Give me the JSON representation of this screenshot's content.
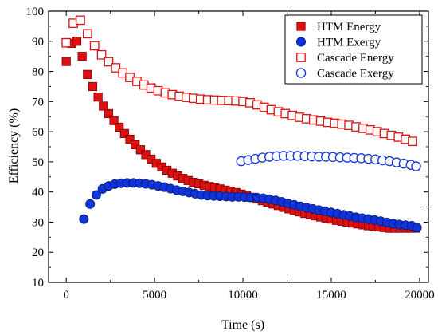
{
  "chart_data": {
    "type": "scatter",
    "title": "",
    "xlabel": "Time (s)",
    "ylabel": "Efficiency (%)",
    "xlim": [
      -1000,
      20500
    ],
    "ylim": [
      10,
      100
    ],
    "xticks": [
      0,
      5000,
      10000,
      15000,
      20000
    ],
    "yticks": [
      10,
      20,
      30,
      40,
      50,
      60,
      70,
      80,
      90,
      100
    ],
    "grid": false,
    "legend_position": "top-right",
    "series": [
      {
        "name": "HTM Energy",
        "marker": "square-filled",
        "color": "#dd1111",
        "x": [
          0,
          300,
          600,
          900,
          1200,
          1500,
          1800,
          2100,
          2400,
          2700,
          3000,
          3300,
          3600,
          3900,
          4200,
          4500,
          4800,
          5100,
          5400,
          5700,
          6000,
          6300,
          6600,
          6900,
          7200,
          7500,
          7800,
          8100,
          8400,
          8700,
          9000,
          9300,
          9600,
          9900,
          10200,
          10500,
          10800,
          11100,
          11400,
          11700,
          12000,
          12300,
          12600,
          12900,
          13200,
          13500,
          13800,
          14100,
          14400,
          14700,
          15000,
          15300,
          15600,
          15900,
          16200,
          16500,
          16800,
          17100,
          17400,
          17700,
          18000,
          18300,
          18600,
          18900,
          19200,
          19500,
          19800
        ],
        "y": [
          83.3,
          89.3,
          90,
          85,
          79,
          75,
          71.5,
          68.5,
          66,
          63.7,
          61.5,
          59.4,
          57.5,
          55.7,
          54,
          52.4,
          50.9,
          49.5,
          48.3,
          47.2,
          46.2,
          45.3,
          44.5,
          43.8,
          43.2,
          42.7,
          42.2,
          41.8,
          41.4,
          41,
          40.6,
          40.2,
          39.8,
          39.3,
          38.8,
          38.2,
          37.7,
          37.1,
          36.6,
          36,
          35.5,
          34.9,
          34.4,
          33.9,
          33.4,
          32.9,
          32.5,
          32.1,
          31.7,
          31.3,
          31,
          30.6,
          30.3,
          30,
          29.7,
          29.4,
          29.1,
          28.8,
          28.6,
          28.4,
          28.2,
          28,
          28,
          28,
          28,
          28,
          28
        ]
      },
      {
        "name": "HTM Exergy",
        "marker": "circle-filled",
        "color": "#1133dd",
        "x": [
          1000,
          1350,
          1700,
          2050,
          2400,
          2750,
          3100,
          3450,
          3800,
          4150,
          4500,
          4850,
          5200,
          5550,
          5900,
          6250,
          6600,
          6950,
          7300,
          7650,
          8000,
          8350,
          8700,
          9050,
          9400,
          9750,
          10100,
          10450,
          10800,
          11150,
          11500,
          11850,
          12200,
          12550,
          12900,
          13250,
          13600,
          13950,
          14300,
          14650,
          15000,
          15350,
          15700,
          16050,
          16400,
          16750,
          17100,
          17450,
          17800,
          18150,
          18500,
          18850,
          19200,
          19550,
          19850
        ],
        "y": [
          31,
          36,
          39,
          41,
          42,
          42.6,
          42.9,
          43,
          43,
          42.9,
          42.7,
          42.4,
          42,
          41.6,
          41.1,
          40.6,
          40.2,
          39.8,
          39.4,
          39,
          38.8,
          38.7,
          38.6,
          38.5,
          38.4,
          38.4,
          38.3,
          38.2,
          38.1,
          37.9,
          37.6,
          37.2,
          36.7,
          36.2,
          35.7,
          35.2,
          34.8,
          34.4,
          34,
          33.6,
          33.2,
          32.8,
          32.4,
          32,
          31.6,
          31.3,
          31,
          30.7,
          30.3,
          29.9,
          29.5,
          29.2,
          29,
          28.8,
          28.2
        ]
      },
      {
        "name": "Cascade Energy",
        "marker": "square-open",
        "color": "#dd1111",
        "x": [
          0,
          400,
          800,
          1200,
          1600,
          2000,
          2400,
          2800,
          3200,
          3600,
          4000,
          4400,
          4800,
          5200,
          5600,
          6000,
          6400,
          6800,
          7200,
          7600,
          8000,
          8400,
          8800,
          9200,
          9600,
          10000,
          10400,
          10800,
          11200,
          11600,
          12000,
          12400,
          12800,
          13200,
          13600,
          14000,
          14400,
          14800,
          15200,
          15600,
          16000,
          16400,
          16800,
          17200,
          17600,
          18000,
          18400,
          18800,
          19200,
          19600
        ],
        "y": [
          89.5,
          96,
          97,
          92.5,
          88.5,
          85.5,
          83.2,
          81.2,
          79.5,
          78,
          76.7,
          75.5,
          74.5,
          73.6,
          72.9,
          72.3,
          71.8,
          71.4,
          71.1,
          70.8,
          70.6,
          70.5,
          70.4,
          70.3,
          70.2,
          70,
          69.6,
          68.9,
          68.1,
          67.3,
          66.6,
          66,
          65.4,
          64.8,
          64.3,
          63.9,
          63.5,
          63.1,
          62.8,
          62.5,
          62.1,
          61.6,
          61.1,
          60.6,
          60,
          59.4,
          58.8,
          58.2,
          57.5,
          56.8
        ]
      },
      {
        "name": "Cascade Exergy",
        "marker": "circle-open",
        "color": "#1133dd",
        "x": [
          9900,
          10300,
          10700,
          11100,
          11500,
          11900,
          12300,
          12700,
          13100,
          13500,
          13900,
          14300,
          14700,
          15100,
          15500,
          15900,
          16300,
          16700,
          17100,
          17500,
          17900,
          18300,
          18700,
          19100,
          19500,
          19800
        ],
        "y": [
          50.2,
          50.6,
          51,
          51.4,
          51.7,
          51.9,
          52,
          52,
          52,
          51.9,
          51.8,
          51.7,
          51.7,
          51.6,
          51.5,
          51.4,
          51.3,
          51.2,
          51,
          50.8,
          50.5,
          50.2,
          49.8,
          49.4,
          49,
          48.5
        ]
      }
    ]
  }
}
